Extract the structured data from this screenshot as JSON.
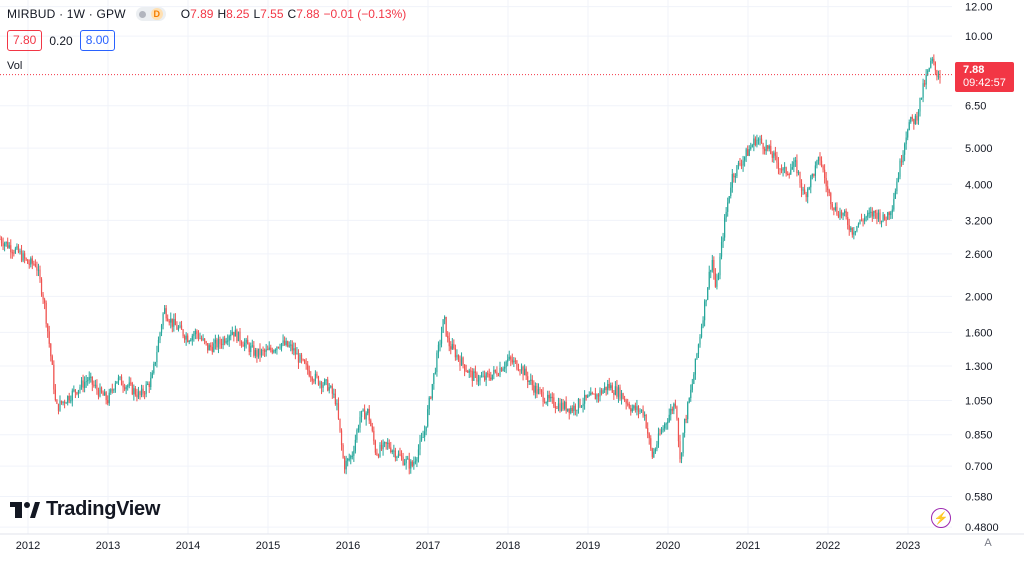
{
  "header": {
    "symbol_line": "MIRBUD · 1W · GPW",
    "badge_letter": "D",
    "open_label": "O",
    "open": "7.89",
    "high_label": "H",
    "high": "8.25",
    "low_label": "L",
    "low": "7.55",
    "close_label": "C",
    "close": "7.88",
    "change": "−0.01 (−0.13%)"
  },
  "order": {
    "bid": "7.80",
    "spread": "0.20",
    "ask": "8.00"
  },
  "volume_label": "Vol",
  "last_price": {
    "price": "7.88",
    "countdown": "09:42:57"
  },
  "brand": "TradingView",
  "controls": {
    "auto_scale": "A",
    "lightning_icon": "lightning-icon"
  },
  "colors": {
    "up": "#26a69a",
    "down": "#ef5350",
    "price_line": "#f23645",
    "grid": "#f0f3fa"
  },
  "chart_data": {
    "type": "candlestick",
    "scale": "log",
    "grid": true,
    "x_ticks": [
      "2012",
      "2013",
      "2014",
      "2015",
      "2016",
      "2017",
      "2018",
      "2019",
      "2020",
      "2021",
      "2022",
      "2023"
    ],
    "y_ticks": [
      "12.00",
      "10.00",
      "7.88",
      "6.50",
      "5.000",
      "4.000",
      "3.200",
      "2.600",
      "2.000",
      "1.600",
      "1.300",
      "1.050",
      "0.850",
      "0.700",
      "0.580",
      "0.4800"
    ],
    "ylim": [
      0.46,
      12.5
    ],
    "xlim": [
      2011.65,
      2023.55
    ],
    "last_close": 7.88,
    "series": [
      {
        "x": [
          2011.65,
          2011.9,
          2012.0,
          2012.1,
          2012.2,
          2012.3,
          2012.35,
          2012.45,
          2012.6,
          2012.75,
          2012.9,
          2013.0,
          2013.1,
          2013.25,
          2013.4,
          2013.55,
          2013.7,
          2013.8,
          2013.9,
          2014.0,
          2014.1,
          2014.25,
          2014.4,
          2014.55,
          2014.7,
          2014.85,
          2015.0,
          2015.15,
          2015.3,
          2015.45,
          2015.6,
          2015.75,
          2015.85,
          2015.95,
          2016.05,
          2016.15,
          2016.25,
          2016.35,
          2016.5,
          2016.65,
          2016.8,
          2016.95,
          2017.05,
          2017.15,
          2017.2,
          2017.25,
          2017.3,
          2017.4,
          2017.55,
          2017.7,
          2017.85,
          2018.0,
          2018.15,
          2018.25,
          2018.35,
          2018.5,
          2018.65,
          2018.8,
          2018.95,
          2019.1,
          2019.25,
          2019.4,
          2019.55,
          2019.7,
          2019.8,
          2019.9,
          2020.0,
          2020.1,
          2020.15,
          2020.2,
          2020.3,
          2020.4,
          2020.55,
          2020.6,
          2020.7,
          2020.8,
          2020.9,
          2021.0,
          2021.1,
          2021.2,
          2021.3,
          2021.45,
          2021.6,
          2021.7,
          2021.8,
          2021.9,
          2022.0,
          2022.1,
          2022.2,
          2022.3,
          2022.45,
          2022.6,
          2022.7,
          2022.8,
          2022.9,
          2023.0,
          2023.1,
          2023.2,
          2023.3,
          2023.35,
          2023.4
        ],
        "close": [
          2.85,
          2.6,
          2.45,
          2.45,
          1.95,
          1.3,
          1.0,
          1.05,
          1.12,
          1.2,
          1.1,
          1.05,
          1.2,
          1.15,
          1.08,
          1.2,
          1.85,
          1.7,
          1.62,
          1.55,
          1.6,
          1.45,
          1.5,
          1.62,
          1.5,
          1.4,
          1.42,
          1.5,
          1.45,
          1.3,
          1.2,
          1.15,
          1.05,
          0.7,
          0.75,
          0.95,
          0.98,
          0.76,
          0.8,
          0.74,
          0.7,
          0.85,
          1.15,
          1.52,
          1.75,
          1.5,
          1.45,
          1.35,
          1.22,
          1.2,
          1.25,
          1.35,
          1.3,
          1.2,
          1.12,
          1.05,
          1.02,
          1.0,
          1.05,
          1.08,
          1.15,
          1.1,
          1.0,
          0.98,
          0.74,
          0.85,
          0.95,
          1.05,
          0.72,
          0.9,
          1.15,
          1.58,
          2.55,
          2.05,
          3.1,
          4.2,
          4.55,
          4.9,
          5.3,
          5.1,
          4.8,
          4.3,
          4.5,
          3.7,
          4.2,
          4.7,
          3.8,
          3.4,
          3.3,
          3.0,
          3.25,
          3.35,
          3.2,
          3.5,
          4.5,
          5.8,
          6.0,
          7.4,
          8.6,
          8.0,
          7.88
        ]
      }
    ]
  }
}
